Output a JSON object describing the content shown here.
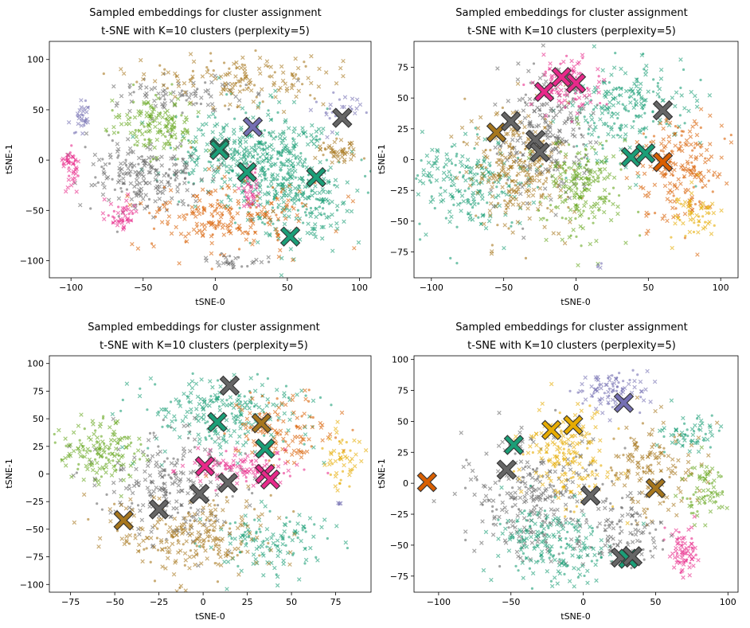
{
  "colors": {
    "teal": "#1b9e77",
    "orange": "#d95f02",
    "purple": "#7570b3",
    "pink": "#e7298a",
    "green": "#66a61e",
    "yellow": "#e6ab02",
    "brown": "#a6761d",
    "gray": "#666666"
  },
  "chart_data": [
    {
      "type": "scatter",
      "title": "Sampled embeddings for cluster assignment",
      "subtitle": "t-SNE with K=10 clusters (perplexity=5)",
      "xlabel": "tSNE-0",
      "ylabel": "tSNE-1",
      "xlim": [
        -115,
        108
      ],
      "ylim": [
        -117,
        118
      ],
      "xticks": [
        -100,
        -50,
        0,
        50,
        100
      ],
      "yticks": [
        -100,
        -50,
        0,
        50,
        100
      ],
      "centroids": [
        {
          "x": 26,
          "y": 33,
          "color": "purple"
        },
        {
          "x": 88,
          "y": 42,
          "color": "gray"
        },
        {
          "x": 3,
          "y": 12,
          "color": "teal"
        },
        {
          "x": 3,
          "y": 10,
          "color": "teal"
        },
        {
          "x": 22,
          "y": -12,
          "color": "teal"
        },
        {
          "x": 70,
          "y": -17,
          "color": "teal"
        },
        {
          "x": 52,
          "y": -76,
          "color": "teal"
        }
      ],
      "clusters": [
        {
          "color": "teal",
          "n": 420,
          "cx": 30,
          "cy": 5,
          "sx": 28,
          "sy": 22
        },
        {
          "color": "teal",
          "n": 200,
          "cx": 55,
          "cy": -45,
          "sx": 18,
          "sy": 18
        },
        {
          "color": "gray",
          "n": 220,
          "cx": -50,
          "cy": -15,
          "sx": 22,
          "sy": 18
        },
        {
          "color": "gray",
          "n": 80,
          "cx": -20,
          "cy": 65,
          "sx": 25,
          "sy": 10
        },
        {
          "color": "brown",
          "n": 150,
          "cx": 20,
          "cy": 80,
          "sx": 35,
          "sy": 12
        },
        {
          "color": "brown",
          "n": 50,
          "cx": 85,
          "cy": 8,
          "sx": 8,
          "sy": 5
        },
        {
          "color": "green",
          "n": 150,
          "cx": -40,
          "cy": 35,
          "sx": 15,
          "sy": 15
        },
        {
          "color": "orange",
          "n": 220,
          "cx": 10,
          "cy": -55,
          "sx": 30,
          "sy": 18
        },
        {
          "color": "pink",
          "n": 45,
          "cx": -100,
          "cy": -5,
          "sx": 3,
          "sy": 10
        },
        {
          "color": "pink",
          "n": 45,
          "cx": -65,
          "cy": -55,
          "sx": 6,
          "sy": 8
        },
        {
          "color": "pink",
          "n": 40,
          "cx": 25,
          "cy": -30,
          "sx": 3,
          "sy": 10
        },
        {
          "color": "purple",
          "n": 30,
          "cx": -92,
          "cy": 40,
          "sx": 3,
          "sy": 8
        },
        {
          "color": "purple",
          "n": 30,
          "cx": 85,
          "cy": 50,
          "sx": 12,
          "sy": 10
        },
        {
          "color": "gray",
          "n": 30,
          "cx": 15,
          "cy": -100,
          "sx": 12,
          "sy": 4
        }
      ]
    },
    {
      "type": "scatter",
      "title": "Sampled embeddings for cluster assignment",
      "subtitle": "t-SNE with K=10 clusters (perplexity=5)",
      "xlabel": "tSNE-0",
      "ylabel": "tSNE-1",
      "xlim": [
        -112,
        112
      ],
      "ylim": [
        -96,
        96
      ],
      "xticks": [
        -100,
        -50,
        0,
        50,
        100
      ],
      "yticks": [
        -75,
        -50,
        -25,
        0,
        25,
        50,
        75
      ],
      "centroids": [
        {
          "x": -10,
          "y": 67,
          "color": "pink"
        },
        {
          "x": 0,
          "y": 62,
          "color": "pink"
        },
        {
          "x": -22,
          "y": 55,
          "color": "pink"
        },
        {
          "x": -55,
          "y": 22,
          "color": "brown"
        },
        {
          "x": -45,
          "y": 31,
          "color": "gray"
        },
        {
          "x": -28,
          "y": 16,
          "color": "gray"
        },
        {
          "x": -25,
          "y": 6,
          "color": "gray"
        },
        {
          "x": 60,
          "y": 40,
          "color": "gray"
        },
        {
          "x": 38,
          "y": 2,
          "color": "teal"
        },
        {
          "x": 48,
          "y": 5,
          "color": "teal"
        },
        {
          "x": 60,
          "y": -2,
          "color": "orange"
        }
      ],
      "clusters": [
        {
          "color": "teal",
          "n": 220,
          "cx": -75,
          "cy": -20,
          "sx": 22,
          "sy": 20
        },
        {
          "color": "teal",
          "n": 220,
          "cx": 35,
          "cy": 40,
          "sx": 20,
          "sy": 20
        },
        {
          "color": "brown",
          "n": 280,
          "cx": -40,
          "cy": -10,
          "sx": 18,
          "sy": 25
        },
        {
          "color": "gray",
          "n": 220,
          "cx": -20,
          "cy": 20,
          "sx": 15,
          "sy": 25
        },
        {
          "color": "green",
          "n": 200,
          "cx": 5,
          "cy": -20,
          "sx": 15,
          "sy": 20
        },
        {
          "color": "orange",
          "n": 200,
          "cx": 70,
          "cy": -5,
          "sx": 15,
          "sy": 20
        },
        {
          "color": "pink",
          "n": 100,
          "cx": -5,
          "cy": 60,
          "sx": 10,
          "sy": 10
        },
        {
          "color": "yellow",
          "n": 60,
          "cx": 80,
          "cy": -45,
          "sx": 8,
          "sy": 10
        },
        {
          "color": "purple",
          "n": 4,
          "cx": 16,
          "cy": -86,
          "sx": 1,
          "sy": 1
        }
      ]
    },
    {
      "type": "scatter",
      "title": "Sampled embeddings for cluster assignment",
      "subtitle": "t-SNE with K=10 clusters (perplexity=5)",
      "xlabel": "tSNE-0",
      "ylabel": "tSNE-1",
      "xlim": [
        -87,
        95
      ],
      "ylim": [
        -107,
        107
      ],
      "xticks": [
        -75,
        -50,
        -25,
        0,
        25,
        50,
        75
      ],
      "yticks": [
        -100,
        -75,
        -50,
        -25,
        0,
        25,
        50,
        75,
        100
      ],
      "centroids": [
        {
          "x": 15,
          "y": 80,
          "color": "gray"
        },
        {
          "x": 8,
          "y": 47,
          "color": "teal"
        },
        {
          "x": 33,
          "y": 46,
          "color": "brown"
        },
        {
          "x": 35,
          "y": 23,
          "color": "teal"
        },
        {
          "x": 1,
          "y": 7,
          "color": "pink"
        },
        {
          "x": 35,
          "y": 0,
          "color": "pink"
        },
        {
          "x": 38,
          "y": -5,
          "color": "pink"
        },
        {
          "x": 14,
          "y": -8,
          "color": "gray"
        },
        {
          "x": -2,
          "y": -18,
          "color": "gray"
        },
        {
          "x": -25,
          "y": -32,
          "color": "gray"
        },
        {
          "x": -45,
          "y": -42,
          "color": "brown"
        }
      ],
      "clusters": [
        {
          "color": "teal",
          "n": 240,
          "cx": 10,
          "cy": 55,
          "sx": 25,
          "sy": 18
        },
        {
          "color": "teal",
          "n": 130,
          "cx": 40,
          "cy": -60,
          "sx": 15,
          "sy": 15
        },
        {
          "color": "gray",
          "n": 240,
          "cx": -20,
          "cy": -10,
          "sx": 20,
          "sy": 25
        },
        {
          "color": "brown",
          "n": 240,
          "cx": -5,
          "cy": -55,
          "sx": 25,
          "sy": 18
        },
        {
          "color": "green",
          "n": 150,
          "cx": -60,
          "cy": 20,
          "sx": 12,
          "sy": 15
        },
        {
          "color": "orange",
          "n": 130,
          "cx": 45,
          "cy": 40,
          "sx": 15,
          "sy": 15
        },
        {
          "color": "pink",
          "n": 110,
          "cx": 25,
          "cy": 5,
          "sx": 15,
          "sy": 8
        },
        {
          "color": "yellow",
          "n": 50,
          "cx": 78,
          "cy": 15,
          "sx": 6,
          "sy": 12
        },
        {
          "color": "purple",
          "n": 4,
          "cx": 76,
          "cy": -26,
          "sx": 1,
          "sy": 1
        }
      ]
    },
    {
      "type": "scatter",
      "title": "Sampled embeddings for cluster assignment",
      "subtitle": "t-SNE with K=10 clusters (perplexity=5)",
      "xlabel": "tSNE-0",
      "ylabel": "tSNE-1",
      "xlim": [
        -117,
        107
      ],
      "ylim": [
        -88,
        103
      ],
      "xticks": [
        -100,
        -50,
        0,
        50,
        100
      ],
      "yticks": [
        -75,
        -50,
        -25,
        0,
        25,
        50,
        75,
        100
      ],
      "centroids": [
        {
          "x": -108,
          "y": 1,
          "color": "orange"
        },
        {
          "x": 28,
          "y": 65,
          "color": "purple"
        },
        {
          "x": -22,
          "y": 43,
          "color": "yellow"
        },
        {
          "x": -7,
          "y": 47,
          "color": "yellow"
        },
        {
          "x": -48,
          "y": 31,
          "color": "teal"
        },
        {
          "x": -53,
          "y": 11,
          "color": "gray"
        },
        {
          "x": 5,
          "y": -10,
          "color": "gray"
        },
        {
          "x": 50,
          "y": -4,
          "color": "brown"
        },
        {
          "x": 26,
          "y": -60,
          "color": "gray"
        },
        {
          "x": 31,
          "y": -61,
          "color": "teal"
        },
        {
          "x": 34,
          "y": -59,
          "color": "gray"
        }
      ],
      "clusters": [
        {
          "color": "gray",
          "n": 300,
          "cx": -30,
          "cy": -10,
          "sx": 25,
          "sy": 25
        },
        {
          "color": "teal",
          "n": 200,
          "cx": -20,
          "cy": -50,
          "sx": 22,
          "sy": 15
        },
        {
          "color": "teal",
          "n": 60,
          "cx": 75,
          "cy": 40,
          "sx": 12,
          "sy": 8
        },
        {
          "color": "yellow",
          "n": 180,
          "cx": -10,
          "cy": 25,
          "sx": 15,
          "sy": 20
        },
        {
          "color": "brown",
          "n": 150,
          "cx": 50,
          "cy": 10,
          "sx": 15,
          "sy": 20
        },
        {
          "color": "purple",
          "n": 90,
          "cx": 20,
          "cy": 75,
          "sx": 12,
          "sy": 8
        },
        {
          "color": "green",
          "n": 70,
          "cx": 85,
          "cy": -5,
          "sx": 8,
          "sy": 12
        },
        {
          "color": "pink",
          "n": 70,
          "cx": 70,
          "cy": -55,
          "sx": 5,
          "sy": 10
        },
        {
          "color": "gray",
          "n": 100,
          "cx": 30,
          "cy": -40,
          "sx": 12,
          "sy": 15
        }
      ]
    }
  ]
}
